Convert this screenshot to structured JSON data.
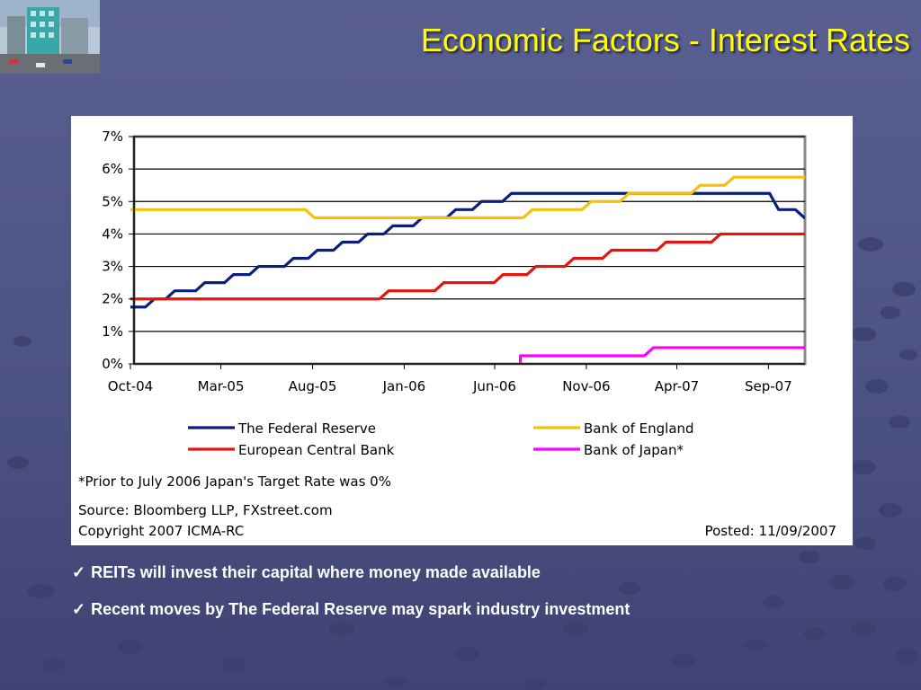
{
  "page": {
    "title": "Economic Factors - Interest Rates",
    "logo_icon": "office-building-photo-icon"
  },
  "bullets": [
    {
      "icon": "checkmark-icon",
      "text": "REITs will invest their capital where money made available"
    },
    {
      "icon": "checkmark-icon",
      "text": "Recent moves by The Federal Reserve may spark industry investment"
    }
  ],
  "chart_data": {
    "type": "line",
    "x_ticks": [
      "Oct-04",
      "Mar-05",
      "Aug-05",
      "Jan-06",
      "Jun-06",
      "Nov-06",
      "Apr-07",
      "Sep-07"
    ],
    "x_range": [
      "2004-10",
      "2007-11"
    ],
    "y_ticks": [
      "0%",
      "1%",
      "2%",
      "3%",
      "4%",
      "5%",
      "6%",
      "7%"
    ],
    "ylim": [
      0,
      7
    ],
    "grid": "horizontal",
    "legend_position": "bottom",
    "series": [
      {
        "name": "The Federal Reserve",
        "color": "#0b1f7a",
        "points": [
          [
            "2004-10-01",
            1.75
          ],
          [
            "2004-11-10",
            2.0
          ],
          [
            "2004-12-14",
            2.25
          ],
          [
            "2005-02-02",
            2.5
          ],
          [
            "2005-03-22",
            2.75
          ],
          [
            "2005-05-03",
            3.0
          ],
          [
            "2005-06-30",
            3.25
          ],
          [
            "2005-08-09",
            3.5
          ],
          [
            "2005-09-20",
            3.75
          ],
          [
            "2005-11-01",
            4.0
          ],
          [
            "2005-12-13",
            4.25
          ],
          [
            "2006-01-31",
            4.5
          ],
          [
            "2006-03-28",
            4.75
          ],
          [
            "2006-05-10",
            5.0
          ],
          [
            "2006-06-29",
            5.25
          ],
          [
            "2007-09-18",
            4.75
          ],
          [
            "2007-10-31",
            4.5
          ]
        ]
      },
      {
        "name": "Bank of England",
        "color": "#f4c20d",
        "points": [
          [
            "2004-10-01",
            4.75
          ],
          [
            "2005-08-04",
            4.5
          ],
          [
            "2006-08-03",
            4.75
          ],
          [
            "2006-11-09",
            5.0
          ],
          [
            "2007-01-11",
            5.25
          ],
          [
            "2007-05-10",
            5.5
          ],
          [
            "2007-07-05",
            5.75
          ]
        ]
      },
      {
        "name": "European Central Bank",
        "color": "#e8120f",
        "points": [
          [
            "2004-10-01",
            2.0
          ],
          [
            "2005-12-06",
            2.25
          ],
          [
            "2006-03-08",
            2.5
          ],
          [
            "2006-06-15",
            2.75
          ],
          [
            "2006-08-09",
            3.0
          ],
          [
            "2006-10-11",
            3.25
          ],
          [
            "2006-12-13",
            3.5
          ],
          [
            "2007-03-14",
            3.75
          ],
          [
            "2007-06-13",
            4.0
          ]
        ]
      },
      {
        "name": "Bank of Japan*",
        "color": "#ff00ff",
        "points": [
          [
            "2006-07-14",
            0.0
          ],
          [
            "2006-07-14",
            0.25
          ],
          [
            "2007-02-21",
            0.5
          ]
        ]
      }
    ],
    "footnote": "*Prior to July 2006 Japan's Target Rate was 0%",
    "source": "Source: Bloomberg LLP, FXstreet.com",
    "copyright": "Copyright 2007 ICMA-RC",
    "posted": "Posted: 11/09/2007"
  }
}
